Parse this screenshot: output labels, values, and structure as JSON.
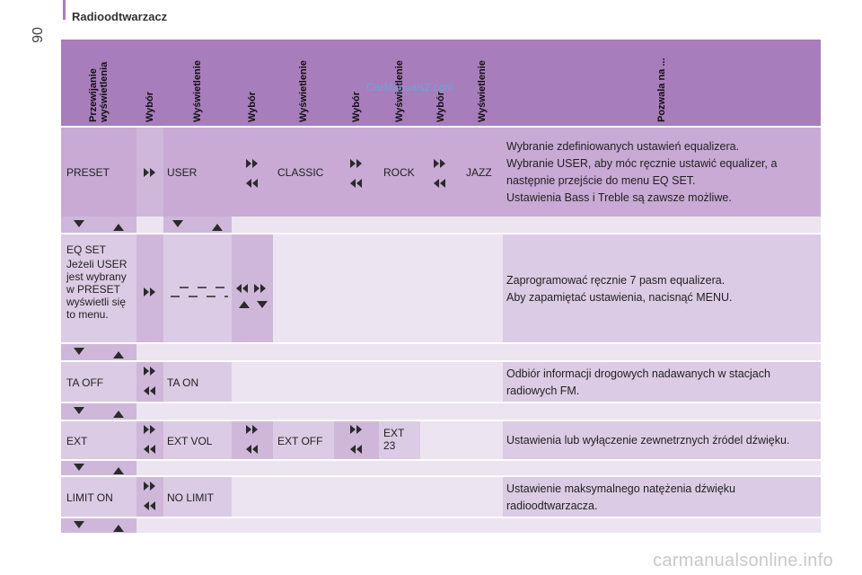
{
  "header": {
    "page_number": "90",
    "title": "Radioodtwarzacz"
  },
  "columns": [
    "Przewijanie\nwyświetlenia",
    "Wybór",
    "Wyświetlenie",
    "Wybór",
    "Wyświetlenie",
    "Wybór",
    "Wyświetlenie",
    "Wybór",
    "Wyświetlenie",
    "Pozwala na ..."
  ],
  "rows": [
    {
      "c1": "PRESET",
      "c3": "USER",
      "c5": "CLASSIC",
      "c7": "ROCK",
      "c9": "JAZZ",
      "desc": [
        "Wybranie zdefiniowanych ustawień equalizera.",
        "Wybranie USER, aby móc ręcznie ustawić equalizer, a następnie przejście do menu EQ SET.",
        "Ustawienia Bass i Treble są zawsze możliwe."
      ]
    },
    {
      "c1": [
        "EQ SET",
        "Jeżeli USER jest wybrany w PRESET wyświetli się to menu."
      ],
      "desc": [
        "Zaprogramować ręcznie 7 pasm equalizera.",
        "Aby zapamiętać ustawienia, nacisnąć MENU."
      ]
    },
    {
      "c1": "TA OFF",
      "c3": "TA ON",
      "desc": [
        "Odbiór informacji drogowych nadawanych w stacjach radiowych FM."
      ]
    },
    {
      "c1": "EXT",
      "c3": "EXT VOL",
      "c5": "EXT OFF",
      "c7": "EXT 23",
      "desc": [
        "Ustawienia lub wyłączenie zewnetrznych źródel dźwięku."
      ]
    },
    {
      "c1": "LIMIT ON",
      "c3": "NO LIMIT",
      "desc": [
        "Ustawienie maksymalnego natężenia dźwięku radioodtwarzacza."
      ]
    }
  ],
  "watermark": "CarManuals2.com",
  "footer_watermark": "carmanualsonline.info",
  "icons": [
    "next-icon",
    "prev-icon",
    "down-arrow-icon",
    "up-arrow-icon",
    "equalizer-bars-icon"
  ],
  "colors": {
    "header": "#a87dbc",
    "row_dark": "#c8aad4",
    "row_light": "#dccbe4",
    "row_pale": "#ece4f0",
    "arrow_icon": "#2a2a2a"
  }
}
